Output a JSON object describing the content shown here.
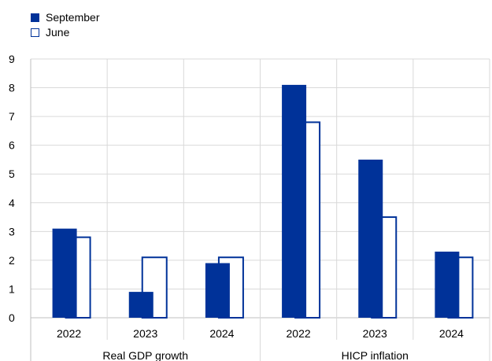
{
  "chart_data": {
    "type": "bar",
    "groups": [
      {
        "label": "Real GDP growth",
        "categories": [
          "2022",
          "2023",
          "2024"
        ]
      },
      {
        "label": "HICP inflation",
        "categories": [
          "2022",
          "2023",
          "2024"
        ]
      }
    ],
    "series": [
      {
        "name": "September",
        "style": "filled",
        "color": "#003299",
        "values": [
          3.1,
          0.9,
          1.9,
          8.1,
          5.5,
          2.3
        ]
      },
      {
        "name": "June",
        "style": "outline",
        "color": "#003299",
        "values": [
          2.8,
          2.1,
          2.1,
          6.8,
          3.5,
          2.1
        ]
      }
    ],
    "ylim": [
      0,
      9
    ],
    "yticks": [
      "0",
      "1",
      "2",
      "3",
      "4",
      "5",
      "6",
      "7",
      "8",
      "9"
    ],
    "grid": true,
    "legend_position": "top-left",
    "colors": {
      "series": "#003299",
      "grid": "#d9d9d9",
      "axis": "#bfbfbf",
      "text": "#000000"
    }
  }
}
